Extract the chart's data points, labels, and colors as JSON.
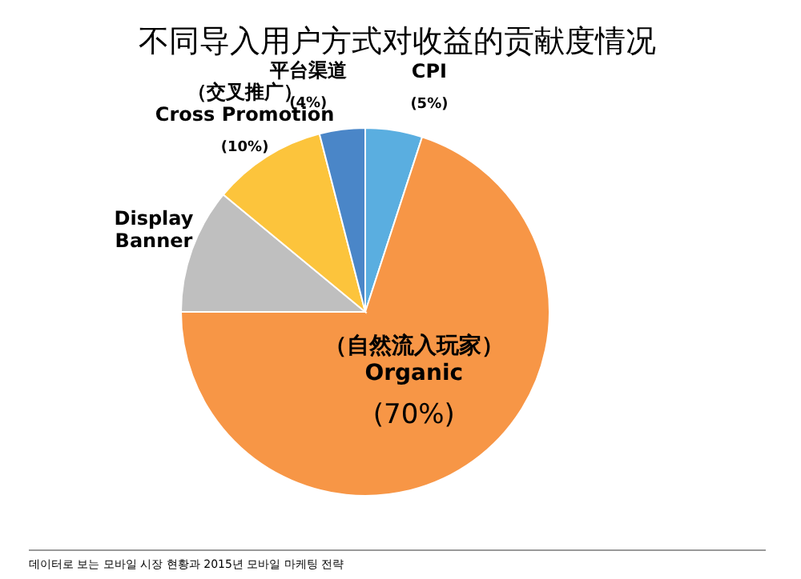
{
  "chart_data": {
    "type": "pie",
    "title": "不同导入用户方式对收益的贡献度情况",
    "categories": [
      "CPI",
      "（自然流入玩家）\nOrganic",
      "Display\nBanner",
      "（交叉推广）\nCross Promotion",
      "平台渠道"
    ],
    "values": [
      5,
      70,
      11,
      10,
      4
    ],
    "value_labels": [
      "(5%)",
      "(70%)",
      null,
      "(10%)",
      "(4%)"
    ],
    "colors": [
      "#5aaee0",
      "#f79646",
      "#bfbfbf",
      "#fcc43c",
      "#4a86c8"
    ],
    "annotations": [
      "데이터로 보는 모바일 시장 현황과 2015년 모바일 마케팅 전략"
    ]
  }
}
